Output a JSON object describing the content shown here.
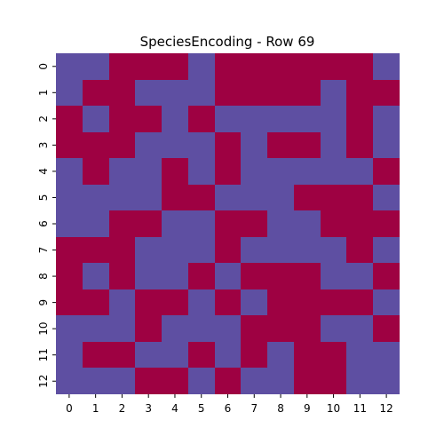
{
  "colors": {
    "value_0": "#5e4fa2",
    "value_1": "#9e0142",
    "axis": "#000000",
    "background": "#ffffff"
  },
  "chart_data": {
    "type": "heatmap",
    "title": "SpeciesEncoding - Row 69",
    "xlabel": "",
    "ylabel": "",
    "x_categories": [
      "0",
      "1",
      "2",
      "3",
      "4",
      "5",
      "6",
      "7",
      "8",
      "9",
      "10",
      "11",
      "12"
    ],
    "y_categories": [
      "0",
      "1",
      "2",
      "3",
      "4",
      "5",
      "6",
      "7",
      "8",
      "9",
      "10",
      "11",
      "12"
    ],
    "value_range": [
      0,
      1
    ],
    "colorbar": false,
    "grid": false,
    "matrix": [
      [
        0,
        0,
        1,
        1,
        1,
        0,
        1,
        1,
        1,
        1,
        1,
        1,
        0
      ],
      [
        0,
        1,
        1,
        0,
        0,
        0,
        1,
        1,
        1,
        1,
        0,
        1,
        1
      ],
      [
        1,
        0,
        1,
        1,
        0,
        1,
        0,
        0,
        0,
        0,
        0,
        1,
        0
      ],
      [
        1,
        1,
        1,
        0,
        0,
        0,
        1,
        0,
        1,
        1,
        0,
        1,
        0
      ],
      [
        0,
        1,
        0,
        0,
        1,
        0,
        1,
        0,
        0,
        0,
        0,
        0,
        1
      ],
      [
        0,
        0,
        0,
        0,
        1,
        1,
        0,
        0,
        0,
        1,
        1,
        1,
        0
      ],
      [
        0,
        0,
        1,
        1,
        0,
        0,
        1,
        1,
        0,
        0,
        1,
        1,
        1
      ],
      [
        1,
        1,
        1,
        0,
        0,
        0,
        1,
        0,
        0,
        0,
        0,
        1,
        0
      ],
      [
        1,
        0,
        1,
        0,
        0,
        1,
        0,
        1,
        1,
        1,
        0,
        0,
        1
      ],
      [
        1,
        1,
        0,
        1,
        1,
        0,
        1,
        0,
        1,
        1,
        1,
        1,
        0
      ],
      [
        0,
        0,
        0,
        1,
        0,
        0,
        0,
        1,
        1,
        1,
        0,
        0,
        1
      ],
      [
        0,
        1,
        1,
        0,
        0,
        1,
        0,
        1,
        0,
        1,
        1,
        0,
        0
      ],
      [
        0,
        0,
        0,
        1,
        1,
        0,
        1,
        0,
        0,
        1,
        1,
        0,
        0
      ]
    ]
  }
}
